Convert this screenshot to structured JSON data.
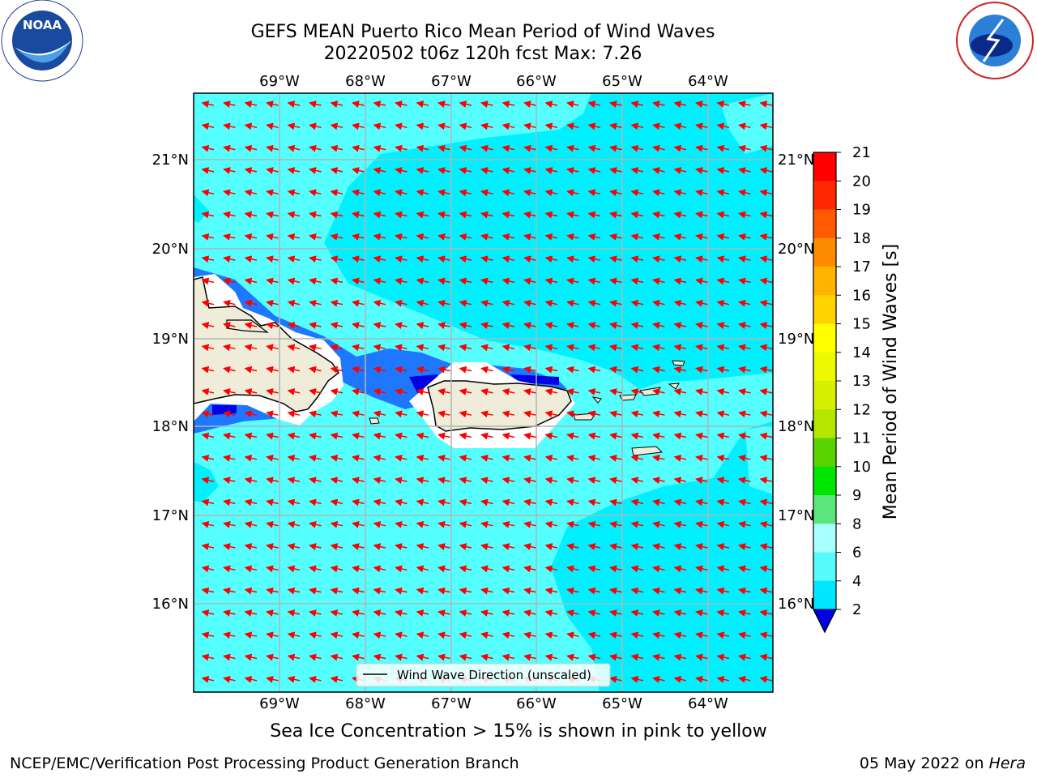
{
  "title_line1": "GEFS MEAN Puerto Rico Mean Period of Wind Waves",
  "title_line2": "20220502 t06z 120h fcst   Max: 7.26",
  "longitude_labels": [
    "69°W",
    "68°W",
    "67°W",
    "66°W",
    "65°W",
    "64°W"
  ],
  "latitude_labels": [
    "21°N",
    "20°N",
    "19°N",
    "18°N",
    "17°N",
    "16°N"
  ],
  "legend_label": "Wind Wave Direction (unscaled)",
  "colorbar": {
    "label": "Mean Period of Wind Waves [s]",
    "ticks": [
      "2",
      "4",
      "6",
      "8",
      "9",
      "10",
      "11",
      "12",
      "13",
      "14",
      "15",
      "16",
      "17",
      "18",
      "19",
      "20",
      "21"
    ],
    "colors": [
      "#0a3cf0",
      "#00e6ff",
      "#55fafa",
      "#aaffff",
      "#5ae67c",
      "#00e600",
      "#5ad200",
      "#b4e600",
      "#d7f000",
      "#ebfa00",
      "#ffff00",
      "#ffd200",
      "#ffb400",
      "#ff8c00",
      "#ff5a00",
      "#ff2800",
      "#ff0000"
    ],
    "under_color": "#0000e6"
  },
  "sea_ice_note": "Sea Ice Concentration > 15% is shown in pink to yellow",
  "footer_left": "NCEP/EMC/Verification Post Processing Product Generation Branch",
  "footer_date": "05 May 2022 on",
  "footer_machine": "Hera",
  "logos": {
    "left": "noaa-logo",
    "right": "nws-logo"
  },
  "colors": {
    "land": "#efedd9",
    "sea_4_6": "#00f0ff",
    "sea_6_8": "#55ffff",
    "sea_2_4": "#1e78ff",
    "arrow": "#ff0000"
  }
}
